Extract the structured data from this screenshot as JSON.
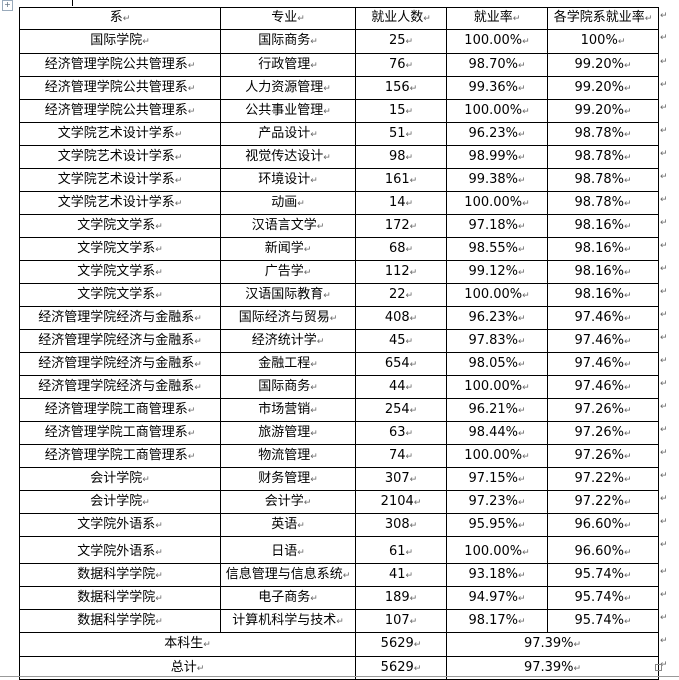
{
  "table": {
    "headers": [
      "系",
      "专业",
      "就业人数",
      "就业率",
      "各学院系就业率"
    ],
    "rows": [
      [
        "国际学院",
        "国际商务",
        "25",
        "100.00%",
        "100%"
      ],
      [
        "经济管理学院公共管理系",
        "行政管理",
        "76",
        "98.70%",
        "99.20%"
      ],
      [
        "经济管理学院公共管理系",
        "人力资源管理",
        "156",
        "99.36%",
        "99.20%"
      ],
      [
        "经济管理学院公共管理系",
        "公共事业管理",
        "15",
        "100.00%",
        "99.20%"
      ],
      [
        "文学院艺术设计学系",
        "产品设计",
        "51",
        "96.23%",
        "98.78%"
      ],
      [
        "文学院艺术设计学系",
        "视觉传达设计",
        "98",
        "98.99%",
        "98.78%"
      ],
      [
        "文学院艺术设计学系",
        "环境设计",
        "161",
        "99.38%",
        "98.78%"
      ],
      [
        "文学院艺术设计学系",
        "动画",
        "14",
        "100.00%",
        "98.78%"
      ],
      [
        "文学院文学系",
        "汉语言文学",
        "172",
        "97.18%",
        "98.16%"
      ],
      [
        "文学院文学系",
        "新闻学",
        "68",
        "98.55%",
        "98.16%"
      ],
      [
        "文学院文学系",
        "广告学",
        "112",
        "99.12%",
        "98.16%"
      ],
      [
        "文学院文学系",
        "汉语国际教育",
        "22",
        "100.00%",
        "98.16%"
      ],
      [
        "经济管理学院经济与金融系",
        "国际经济与贸易",
        "408",
        "96.23%",
        "97.46%"
      ],
      [
        "经济管理学院经济与金融系",
        "经济统计学",
        "45",
        "97.83%",
        "97.46%"
      ],
      [
        "经济管理学院经济与金融系",
        "金融工程",
        "654",
        "98.05%",
        "97.46%"
      ],
      [
        "经济管理学院经济与金融系",
        "国际商务",
        "44",
        "100.00%",
        "97.46%"
      ],
      [
        "经济管理学院工商管理系",
        "市场营销",
        "254",
        "96.21%",
        "97.26%"
      ],
      [
        "经济管理学院工商管理系",
        "旅游管理",
        "63",
        "98.44%",
        "97.26%"
      ],
      [
        "经济管理学院工商管理系",
        "物流管理",
        "74",
        "100.00%",
        "97.26%"
      ],
      [
        "会计学院",
        "财务管理",
        "307",
        "97.15%",
        "97.22%"
      ],
      [
        "会计学院",
        "会计学",
        "2104",
        "97.23%",
        "97.22%"
      ],
      [
        "文学院外语系",
        "英语",
        "308",
        "95.95%",
        "96.60%"
      ],
      [
        "文学院外语系",
        "日语",
        "61",
        "100.00%",
        "96.60%"
      ],
      [
        "数据科学学院",
        "信息管理与信息系统",
        "41",
        "93.18%",
        "95.74%"
      ],
      [
        "数据科学学院",
        "电子商务",
        "189",
        "94.97%",
        "95.74%"
      ],
      [
        "数据科学学院",
        "计算机科学与技术",
        "107",
        "98.17%",
        "95.74%"
      ]
    ],
    "summary": [
      {
        "label": "本科生",
        "count": "5629",
        "rate": "97.39%"
      },
      {
        "label": "总计",
        "count": "5629",
        "rate": "97.39%"
      }
    ]
  }
}
